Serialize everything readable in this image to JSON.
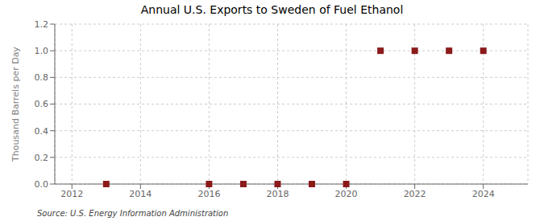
{
  "chart_data": {
    "type": "scatter",
    "title": "Annual U.S. Exports to Sweden of Fuel Ethanol",
    "ylabel": "Thousand Barrels per Day",
    "annotations": [
      "Source: U.S. Energy Information Administration"
    ],
    "x": [
      2013,
      2016,
      2017,
      2018,
      2019,
      2020,
      2021,
      2022,
      2023,
      2024
    ],
    "values": [
      0.0,
      0.0,
      0.0,
      0.0,
      0.0,
      0.0,
      1.0,
      1.0,
      1.0,
      1.0
    ],
    "color": "#8B1A1A",
    "marker": "square",
    "xlim": [
      2011.5,
      2025.3
    ],
    "xticks": [
      2012,
      2014,
      2016,
      2018,
      2020,
      2022,
      2024
    ],
    "ylim": [
      0,
      1.2
    ],
    "yticks": [
      {
        "value": 0,
        "label": "0.0"
      },
      0.2,
      0.4,
      0.6,
      0.8,
      {
        "value": 1,
        "label": "1.0"
      },
      1.2
    ],
    "grid": true
  }
}
